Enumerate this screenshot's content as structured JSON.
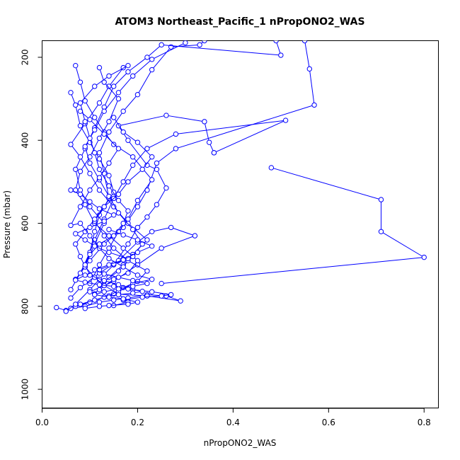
{
  "chart_data": {
    "type": "line",
    "title": "ATOM3 Northeast_Pacific_1 nPropONO2_WAS",
    "xlabel": "nPropONO2_WAS",
    "ylabel": "Pressure (mbar)",
    "xlim": [
      0.0,
      0.83
    ],
    "ylim": [
      1045,
      160
    ],
    "y_reversed": true,
    "x_ticks": [
      0.0,
      0.2,
      0.4,
      0.6,
      0.8
    ],
    "x_tick_labels": [
      "0.0",
      "0.2",
      "0.4",
      "0.6",
      "0.8"
    ],
    "y_ticks": [
      200,
      400,
      600,
      800,
      1000
    ],
    "y_tick_labels": [
      "200",
      "400",
      "600",
      "800",
      "1000"
    ],
    "grid": false,
    "legend": "none",
    "marker": "open-circle",
    "series_color": "#0000ff",
    "series": [
      {
        "points": [
          [
            0.03,
            803
          ],
          [
            0.05,
            810
          ],
          [
            0.06,
            805
          ],
          [
            0.09,
            800
          ],
          [
            0.12,
            790
          ],
          [
            0.15,
            785
          ],
          [
            0.18,
            780
          ],
          [
            0.22,
            772
          ],
          [
            0.26,
            775
          ],
          [
            0.29,
            787
          ],
          [
            0.22,
            775
          ],
          [
            0.15,
            770
          ],
          [
            0.1,
            790
          ],
          [
            0.07,
            800
          ]
        ]
      },
      {
        "points": [
          [
            0.05,
            812
          ],
          [
            0.07,
            795
          ],
          [
            0.1,
            760
          ],
          [
            0.12,
            735
          ],
          [
            0.15,
            700
          ],
          [
            0.18,
            650
          ],
          [
            0.2,
            610
          ],
          [
            0.22,
            585
          ],
          [
            0.24,
            555
          ],
          [
            0.26,
            515
          ],
          [
            0.24,
            470
          ],
          [
            0.22,
            460
          ],
          [
            0.18,
            400
          ],
          [
            0.16,
            365
          ],
          [
            0.26,
            340
          ],
          [
            0.34,
            355
          ],
          [
            0.35,
            405
          ],
          [
            0.36,
            430
          ]
        ]
      },
      {
        "points": [
          [
            0.06,
            780
          ],
          [
            0.08,
            755
          ],
          [
            0.12,
            720
          ],
          [
            0.16,
            690
          ],
          [
            0.2,
            645
          ],
          [
            0.23,
            620
          ],
          [
            0.27,
            610
          ],
          [
            0.32,
            630
          ],
          [
            0.25,
            660
          ],
          [
            0.2,
            700
          ],
          [
            0.15,
            740
          ],
          [
            0.1,
            765
          ]
        ]
      },
      {
        "points": [
          [
            0.25,
            745
          ],
          [
            0.8,
            682
          ],
          [
            0.71,
            620
          ],
          [
            0.71,
            543
          ],
          [
            0.48,
            466
          ]
        ]
      },
      {
        "points": [
          [
            0.06,
            760
          ],
          [
            0.09,
            700
          ],
          [
            0.11,
            640
          ],
          [
            0.13,
            590
          ],
          [
            0.15,
            540
          ],
          [
            0.17,
            500
          ],
          [
            0.19,
            460
          ],
          [
            0.22,
            420
          ],
          [
            0.28,
            385
          ],
          [
            0.51,
            352
          ],
          [
            0.36,
            430
          ]
        ]
      },
      {
        "points": [
          [
            0.07,
            735
          ],
          [
            0.1,
            690
          ],
          [
            0.13,
            650
          ],
          [
            0.17,
            610
          ],
          [
            0.2,
            560
          ],
          [
            0.22,
            520
          ],
          [
            0.24,
            455
          ],
          [
            0.28,
            420
          ],
          [
            0.57,
            315
          ],
          [
            0.56,
            228
          ],
          [
            0.55,
            160
          ]
        ]
      },
      {
        "points": [
          [
            0.08,
            720
          ],
          [
            0.1,
            670
          ],
          [
            0.11,
            620
          ],
          [
            0.12,
            580
          ],
          [
            0.14,
            540
          ],
          [
            0.13,
            480
          ],
          [
            0.12,
            430
          ],
          [
            0.14,
            380
          ],
          [
            0.17,
            330
          ],
          [
            0.2,
            290
          ],
          [
            0.23,
            230
          ],
          [
            0.27,
            175
          ],
          [
            0.33,
            170
          ],
          [
            0.34,
            160
          ]
        ]
      },
      {
        "points": [
          [
            0.09,
            705
          ],
          [
            0.11,
            650
          ],
          [
            0.13,
            600
          ],
          [
            0.1,
            560
          ],
          [
            0.08,
            520
          ],
          [
            0.07,
            470
          ],
          [
            0.09,
            420
          ],
          [
            0.11,
            370
          ],
          [
            0.13,
            320
          ],
          [
            0.15,
            270
          ],
          [
            0.18,
            235
          ],
          [
            0.22,
            200
          ],
          [
            0.25,
            170
          ],
          [
            0.5,
            195
          ],
          [
            0.49,
            160
          ]
        ]
      },
      {
        "points": [
          [
            0.1,
            745
          ],
          [
            0.12,
            700
          ],
          [
            0.14,
            660
          ],
          [
            0.16,
            620
          ],
          [
            0.18,
            590
          ],
          [
            0.2,
            545
          ],
          [
            0.23,
            495
          ],
          [
            0.19,
            440
          ],
          [
            0.15,
            410
          ],
          [
            0.13,
            380
          ],
          [
            0.11,
            345
          ],
          [
            0.09,
            305
          ],
          [
            0.08,
            260
          ],
          [
            0.07,
            220
          ]
        ]
      },
      {
        "points": [
          [
            0.11,
            770
          ],
          [
            0.14,
            730
          ],
          [
            0.17,
            700
          ],
          [
            0.19,
            675
          ],
          [
            0.22,
            640
          ],
          [
            0.18,
            600
          ],
          [
            0.15,
            560
          ],
          [
            0.12,
            520
          ],
          [
            0.1,
            480
          ],
          [
            0.08,
            440
          ],
          [
            0.06,
            410
          ],
          [
            0.09,
            360
          ],
          [
            0.12,
            310
          ],
          [
            0.14,
            270
          ],
          [
            0.17,
            225
          ]
        ]
      },
      {
        "points": [
          [
            0.12,
            760
          ],
          [
            0.15,
            735
          ],
          [
            0.18,
            720
          ],
          [
            0.2,
            690
          ],
          [
            0.17,
            660
          ],
          [
            0.14,
            630
          ],
          [
            0.11,
            600
          ],
          [
            0.09,
            555
          ],
          [
            0.07,
            520
          ],
          [
            0.08,
            475
          ],
          [
            0.1,
            440
          ],
          [
            0.12,
            395
          ],
          [
            0.14,
            355
          ],
          [
            0.16,
            300
          ],
          [
            0.13,
            260
          ],
          [
            0.12,
            225
          ]
        ]
      },
      {
        "points": [
          [
            0.13,
            740
          ],
          [
            0.16,
            715
          ],
          [
            0.19,
            680
          ],
          [
            0.21,
            650
          ],
          [
            0.19,
            615
          ],
          [
            0.16,
            575
          ],
          [
            0.14,
            535
          ],
          [
            0.12,
            495
          ],
          [
            0.1,
            455
          ],
          [
            0.09,
            415
          ],
          [
            0.11,
            375
          ],
          [
            0.13,
            330
          ],
          [
            0.16,
            285
          ],
          [
            0.19,
            245
          ],
          [
            0.23,
            205
          ],
          [
            0.3,
            165
          ]
        ]
      },
      {
        "points": [
          [
            0.14,
            775
          ],
          [
            0.17,
            755
          ],
          [
            0.2,
            740
          ],
          [
            0.22,
            715
          ],
          [
            0.18,
            690
          ],
          [
            0.15,
            660
          ],
          [
            0.13,
            630
          ],
          [
            0.11,
            595
          ],
          [
            0.13,
            560
          ],
          [
            0.15,
            525
          ],
          [
            0.14,
            485
          ],
          [
            0.12,
            445
          ],
          [
            0.1,
            405
          ],
          [
            0.08,
            365
          ],
          [
            0.07,
            315
          ],
          [
            0.06,
            285
          ]
        ]
      },
      {
        "points": [
          [
            0.15,
            798
          ],
          [
            0.18,
            790
          ],
          [
            0.16,
            770
          ],
          [
            0.13,
            750
          ],
          [
            0.11,
            730
          ],
          [
            0.09,
            705
          ],
          [
            0.08,
            680
          ],
          [
            0.07,
            650
          ],
          [
            0.09,
            620
          ],
          [
            0.11,
            590
          ],
          [
            0.13,
            560
          ],
          [
            0.16,
            530
          ],
          [
            0.18,
            500
          ],
          [
            0.21,
            470
          ],
          [
            0.23,
            440
          ],
          [
            0.2,
            405
          ],
          [
            0.17,
            380
          ],
          [
            0.15,
            345
          ]
        ]
      },
      {
        "points": [
          [
            0.16,
            765
          ],
          [
            0.19,
            745
          ],
          [
            0.23,
            735
          ],
          [
            0.2,
            725
          ],
          [
            0.17,
            705
          ],
          [
            0.14,
            685
          ],
          [
            0.12,
            660
          ],
          [
            0.1,
            630
          ],
          [
            0.08,
            600
          ],
          [
            0.06,
            605
          ],
          [
            0.08,
            560
          ],
          [
            0.1,
            520
          ],
          [
            0.12,
            490
          ],
          [
            0.14,
            455
          ],
          [
            0.16,
            420
          ],
          [
            0.13,
            385
          ],
          [
            0.1,
            350
          ],
          [
            0.08,
            330
          ]
        ]
      },
      {
        "points": [
          [
            0.17,
            785
          ],
          [
            0.21,
            778
          ],
          [
            0.25,
            775
          ],
          [
            0.27,
            772
          ],
          [
            0.23,
            765
          ],
          [
            0.19,
            760
          ],
          [
            0.16,
            748
          ],
          [
            0.13,
            738
          ],
          [
            0.1,
            725
          ],
          [
            0.09,
            700
          ],
          [
            0.1,
            675
          ],
          [
            0.12,
            650
          ],
          [
            0.15,
            630
          ],
          [
            0.17,
            600
          ],
          [
            0.18,
            570
          ],
          [
            0.16,
            545
          ],
          [
            0.14,
            510
          ],
          [
            0.12,
            470
          ],
          [
            0.11,
            430
          ],
          [
            0.1,
            395
          ],
          [
            0.09,
            355
          ],
          [
            0.08,
            310
          ],
          [
            0.11,
            270
          ],
          [
            0.14,
            245
          ],
          [
            0.18,
            220
          ]
        ]
      },
      {
        "points": [
          [
            0.08,
            795
          ],
          [
            0.11,
            785
          ],
          [
            0.13,
            778
          ],
          [
            0.16,
            772
          ],
          [
            0.19,
            768
          ],
          [
            0.21,
            764
          ],
          [
            0.18,
            758
          ],
          [
            0.15,
            752
          ],
          [
            0.12,
            748
          ],
          [
            0.09,
            742
          ],
          [
            0.07,
            737
          ],
          [
            0.09,
            725
          ],
          [
            0.12,
            712
          ],
          [
            0.15,
            698
          ],
          [
            0.18,
            685
          ],
          [
            0.14,
            670
          ],
          [
            0.11,
            655
          ],
          [
            0.09,
            640
          ],
          [
            0.07,
            625
          ],
          [
            0.1,
            610
          ],
          [
            0.13,
            595
          ],
          [
            0.15,
            580
          ],
          [
            0.12,
            565
          ],
          [
            0.1,
            548
          ],
          [
            0.08,
            530
          ],
          [
            0.06,
            520
          ]
        ]
      },
      {
        "points": [
          [
            0.09,
            805
          ],
          [
            0.12,
            800
          ],
          [
            0.14,
            798
          ],
          [
            0.18,
            795
          ],
          [
            0.2,
            790
          ],
          [
            0.17,
            782
          ],
          [
            0.14,
            778
          ],
          [
            0.11,
            772
          ],
          [
            0.13,
            765
          ],
          [
            0.16,
            758
          ],
          [
            0.19,
            752
          ],
          [
            0.22,
            745
          ],
          [
            0.19,
            738
          ],
          [
            0.16,
            730
          ],
          [
            0.13,
            722
          ],
          [
            0.11,
            712
          ],
          [
            0.14,
            700
          ],
          [
            0.17,
            688
          ],
          [
            0.2,
            670
          ],
          [
            0.23,
            655
          ],
          [
            0.2,
            640
          ],
          [
            0.17,
            628
          ],
          [
            0.14,
            615
          ]
        ]
      }
    ]
  }
}
